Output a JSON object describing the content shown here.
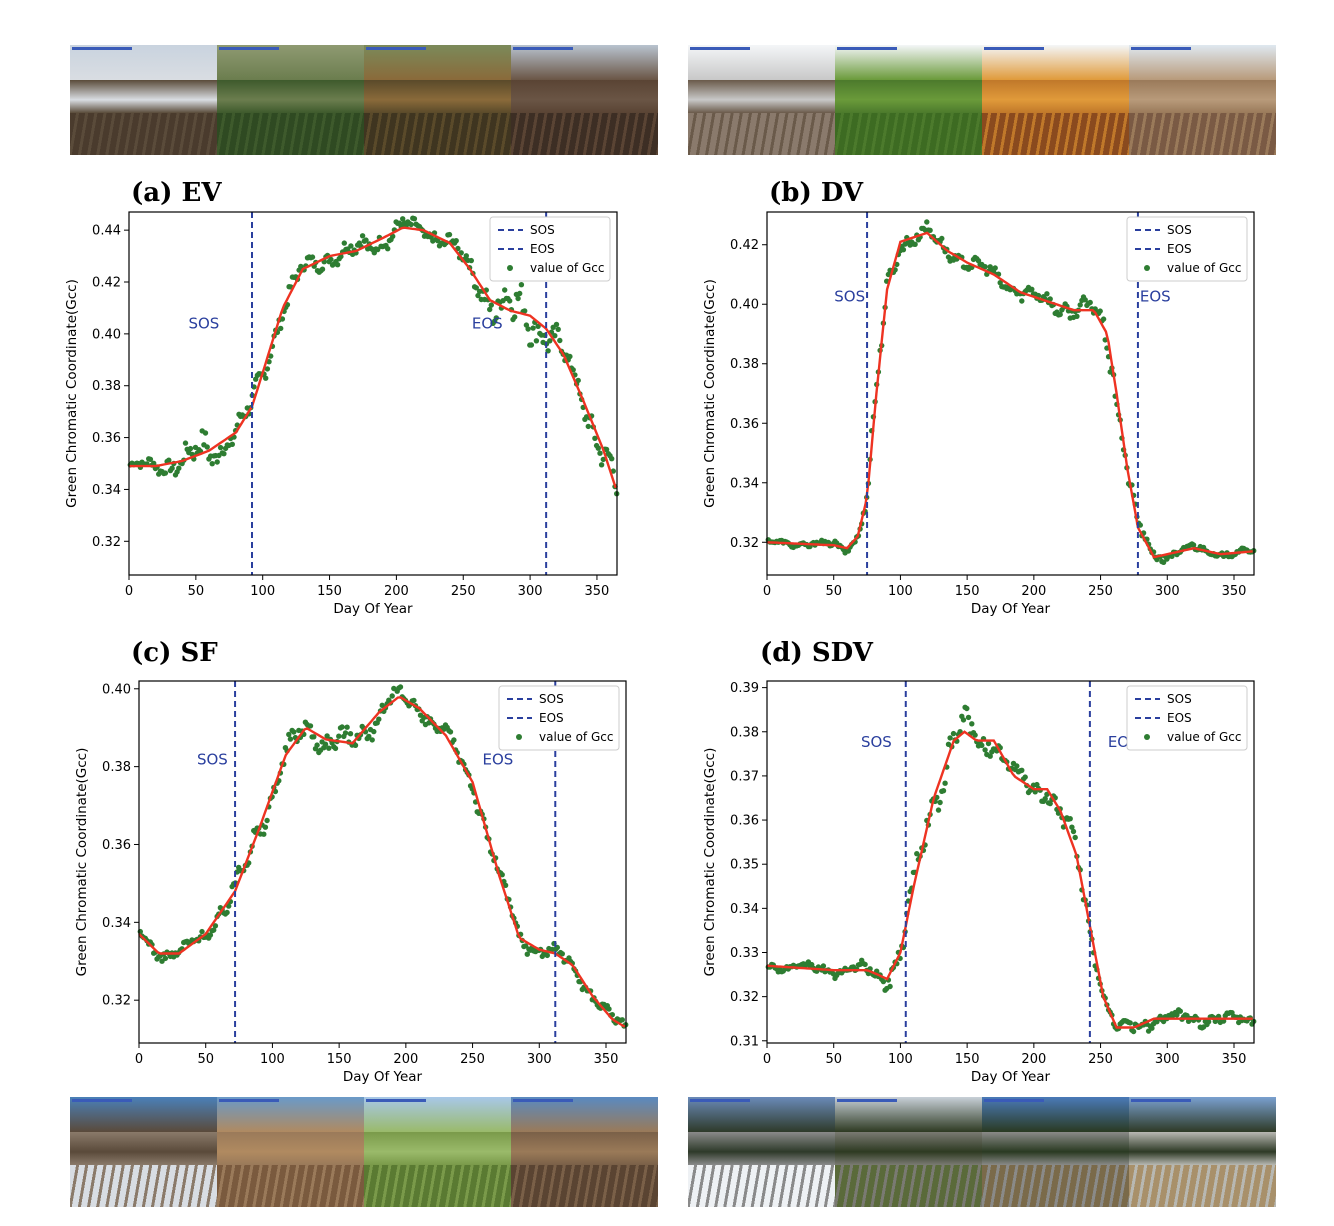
{
  "strips": [
    {
      "name": "photo-strip-ev",
      "left": 70,
      "top": 45,
      "photos": [
        {
          "sky": "#c9d3df",
          "mid": "#5a4b3a",
          "ground": "#4a3b2d",
          "accent": "#d9dde2"
        },
        {
          "sky": "#8f9a72",
          "mid": "#3e5a2c",
          "ground": "#2f4a22",
          "accent": "#6b7d4e"
        },
        {
          "sky": "#7b8a5a",
          "mid": "#5a4a2a",
          "ground": "#3f3520",
          "accent": "#8a6a3a"
        },
        {
          "sky": "#b8c3cf",
          "mid": "#5a4434",
          "ground": "#3d2e24",
          "accent": "#6a5545"
        }
      ]
    },
    {
      "name": "photo-strip-dv",
      "left": 688,
      "top": 45,
      "photos": [
        {
          "sky": "#f4f6f8",
          "mid": "#6a5a4a",
          "ground": "#8a7a6c",
          "accent": "#c8c8c8"
        },
        {
          "sky": "#f4f6f8",
          "mid": "#4c7a2c",
          "ground": "#3d6b22",
          "accent": "#6a9a3a"
        },
        {
          "sky": "#f4f6f8",
          "mid": "#c0782a",
          "ground": "#8a4a1e",
          "accent": "#e09a3a"
        },
        {
          "sky": "#dfe8f0",
          "mid": "#9a7a5a",
          "ground": "#7a5a44",
          "accent": "#b89a7a"
        }
      ]
    },
    {
      "name": "photo-strip-sf",
      "left": 70,
      "top": 1097,
      "photos": [
        {
          "sky": "#4a80b8",
          "mid": "#8a7a6a",
          "ground": "#d8dde3",
          "accent": "#5a4a3a"
        },
        {
          "sky": "#6a9ac8",
          "mid": "#9a7a5a",
          "ground": "#7a5a3e",
          "accent": "#b08a60"
        },
        {
          "sky": "#a8c8e8",
          "mid": "#7a9a4a",
          "ground": "#5a7a32",
          "accent": "#9aba6a"
        },
        {
          "sky": "#5a8ac0",
          "mid": "#7a6048",
          "ground": "#5a4432",
          "accent": "#9a7a58"
        }
      ]
    },
    {
      "name": "photo-strip-sdv",
      "left": 688,
      "top": 1097,
      "photos": [
        {
          "sky": "#6a8ab8",
          "mid": "#8a8a8a",
          "ground": "#eef1f4",
          "accent": "#2e3a2a"
        },
        {
          "sky": "#c8d0d8",
          "mid": "#7a7a72",
          "ground": "#5a6a3a",
          "accent": "#2e3a22"
        },
        {
          "sky": "#4a7ab8",
          "mid": "#8a8a88",
          "ground": "#7a6a4a",
          "accent": "#2a3a22"
        },
        {
          "sky": "#7aa0d0",
          "mid": "#b8b8b2",
          "ground": "#a8906a",
          "accent": "#2e3a26"
        }
      ]
    }
  ],
  "legend_labels": {
    "sos": "SOS",
    "eos": "EOS",
    "points": "value of Gcc"
  },
  "colors": {
    "line": "#ee3322",
    "dots": "#2e7d32",
    "vline": "#2a3f9e",
    "axis": "#000000"
  },
  "chart_data": [
    {
      "panel": "(a) EV",
      "type": "scatter",
      "xlabel": "Day Of Year",
      "ylabel": "Green Chromatic Coordinate(Gcc)",
      "xlim": [
        0,
        365
      ],
      "ylim": [
        0.307,
        0.447
      ],
      "xticks": [
        0,
        50,
        100,
        150,
        200,
        250,
        300,
        350
      ],
      "yticks": [
        0.32,
        0.34,
        0.36,
        0.38,
        0.4,
        0.42,
        0.44
      ],
      "sos": 92,
      "eos": 312,
      "sos_label_pos": [
        56,
        0.402
      ],
      "eos_label_pos": [
        268,
        0.402
      ],
      "curve": [
        [
          0,
          0.349
        ],
        [
          20,
          0.349
        ],
        [
          40,
          0.351
        ],
        [
          60,
          0.355
        ],
        [
          80,
          0.362
        ],
        [
          92,
          0.372
        ],
        [
          100,
          0.385
        ],
        [
          115,
          0.41
        ],
        [
          130,
          0.425
        ],
        [
          150,
          0.43
        ],
        [
          170,
          0.432
        ],
        [
          190,
          0.437
        ],
        [
          205,
          0.441
        ],
        [
          220,
          0.44
        ],
        [
          240,
          0.435
        ],
        [
          255,
          0.425
        ],
        [
          270,
          0.413
        ],
        [
          285,
          0.409
        ],
        [
          300,
          0.407
        ],
        [
          312,
          0.402
        ],
        [
          325,
          0.392
        ],
        [
          340,
          0.374
        ],
        [
          355,
          0.355
        ],
        [
          365,
          0.339
        ]
      ],
      "noise": [
        [
          0,
          0.002
        ],
        [
          30,
          0.005
        ],
        [
          50,
          0.008
        ],
        [
          60,
          0.01
        ],
        [
          80,
          0.006
        ],
        [
          100,
          0.006
        ],
        [
          150,
          0.004
        ],
        [
          170,
          0.006
        ],
        [
          220,
          0.004
        ],
        [
          260,
          0.006
        ],
        [
          280,
          0.012
        ],
        [
          300,
          0.012
        ],
        [
          330,
          0.006
        ],
        [
          365,
          0.01
        ]
      ]
    },
    {
      "panel": "(b) DV",
      "type": "scatter",
      "xlabel": "Day Of Year",
      "ylabel": "Green Chromatic Coordinate(Gcc)",
      "xlim": [
        0,
        365
      ],
      "ylim": [
        0.309,
        0.431
      ],
      "xticks": [
        0,
        50,
        100,
        150,
        200,
        250,
        300,
        350
      ],
      "yticks": [
        0.32,
        0.34,
        0.36,
        0.38,
        0.4,
        0.42
      ],
      "sos": 75,
      "eos": 278,
      "sos_label_pos": [
        62,
        0.401
      ],
      "eos_label_pos": [
        291,
        0.401
      ],
      "curve": [
        [
          0,
          0.32
        ],
        [
          50,
          0.319
        ],
        [
          60,
          0.318
        ],
        [
          68,
          0.322
        ],
        [
          75,
          0.335
        ],
        [
          82,
          0.37
        ],
        [
          90,
          0.405
        ],
        [
          100,
          0.421
        ],
        [
          120,
          0.424
        ],
        [
          135,
          0.418
        ],
        [
          150,
          0.414
        ],
        [
          170,
          0.41
        ],
        [
          190,
          0.404
        ],
        [
          210,
          0.401
        ],
        [
          230,
          0.398
        ],
        [
          245,
          0.398
        ],
        [
          255,
          0.39
        ],
        [
          262,
          0.37
        ],
        [
          270,
          0.345
        ],
        [
          278,
          0.325
        ],
        [
          290,
          0.315
        ],
        [
          300,
          0.316
        ],
        [
          320,
          0.318
        ],
        [
          340,
          0.316
        ],
        [
          365,
          0.317
        ]
      ],
      "noise": [
        [
          0,
          0.001
        ],
        [
          70,
          0.002
        ],
        [
          80,
          0.006
        ],
        [
          95,
          0.004
        ],
        [
          150,
          0.003
        ],
        [
          240,
          0.004
        ],
        [
          260,
          0.007
        ],
        [
          280,
          0.003
        ],
        [
          365,
          0.001
        ]
      ]
    },
    {
      "panel": "(c) SF",
      "type": "scatter",
      "xlabel": "Day Of Year",
      "ylabel": "Green Chromatic Coordinate(Gcc)",
      "xlim": [
        0,
        365
      ],
      "ylim": [
        0.309,
        0.402
      ],
      "xticks": [
        0,
        50,
        100,
        150,
        200,
        250,
        300,
        350
      ],
      "yticks": [
        0.32,
        0.34,
        0.36,
        0.38,
        0.4
      ],
      "sos": 72,
      "eos": 312,
      "sos_label_pos": [
        55,
        0.3805
      ],
      "eos_label_pos": [
        269,
        0.3805
      ],
      "curve": [
        [
          0,
          0.337
        ],
        [
          15,
          0.332
        ],
        [
          30,
          0.332
        ],
        [
          50,
          0.337
        ],
        [
          72,
          0.348
        ],
        [
          90,
          0.364
        ],
        [
          110,
          0.383
        ],
        [
          125,
          0.39
        ],
        [
          140,
          0.387
        ],
        [
          160,
          0.386
        ],
        [
          180,
          0.394
        ],
        [
          195,
          0.398
        ],
        [
          210,
          0.395
        ],
        [
          230,
          0.388
        ],
        [
          250,
          0.376
        ],
        [
          270,
          0.352
        ],
        [
          285,
          0.336
        ],
        [
          300,
          0.333
        ],
        [
          312,
          0.332
        ],
        [
          325,
          0.329
        ],
        [
          340,
          0.321
        ],
        [
          355,
          0.315
        ],
        [
          365,
          0.313
        ]
      ],
      "noise": [
        [
          0,
          0.002
        ],
        [
          50,
          0.002
        ],
        [
          80,
          0.006
        ],
        [
          100,
          0.004
        ],
        [
          150,
          0.004
        ],
        [
          170,
          0.005
        ],
        [
          200,
          0.003
        ],
        [
          270,
          0.003
        ],
        [
          320,
          0.002
        ],
        [
          365,
          0.002
        ]
      ]
    },
    {
      "panel": "(d) SDV",
      "type": "scatter",
      "xlabel": "Day Of Year",
      "ylabel": "Green Chromatic Coordinate(Gcc)",
      "xlim": [
        0,
        365
      ],
      "ylim": [
        0.3095,
        0.3915
      ],
      "xticks": [
        0,
        50,
        100,
        150,
        200,
        250,
        300,
        350
      ],
      "yticks": [
        0.31,
        0.32,
        0.33,
        0.34,
        0.35,
        0.36,
        0.37,
        0.38,
        0.39
      ],
      "sos": 104,
      "eos": 242,
      "sos_label_pos": [
        82,
        0.3765
      ],
      "eos_label_pos": [
        267,
        0.3765
      ],
      "curve": [
        [
          0,
          0.327
        ],
        [
          50,
          0.326
        ],
        [
          75,
          0.326
        ],
        [
          83,
          0.325
        ],
        [
          90,
          0.324
        ],
        [
          100,
          0.33
        ],
        [
          110,
          0.345
        ],
        [
          125,
          0.365
        ],
        [
          140,
          0.378
        ],
        [
          148,
          0.38
        ],
        [
          157,
          0.378
        ],
        [
          170,
          0.378
        ],
        [
          185,
          0.37
        ],
        [
          200,
          0.367
        ],
        [
          210,
          0.367
        ],
        [
          220,
          0.362
        ],
        [
          232,
          0.352
        ],
        [
          242,
          0.336
        ],
        [
          252,
          0.32
        ],
        [
          262,
          0.313
        ],
        [
          275,
          0.313
        ],
        [
          290,
          0.315
        ],
        [
          320,
          0.315
        ],
        [
          340,
          0.315
        ],
        [
          365,
          0.315
        ]
      ],
      "noise": [
        [
          0,
          0.001
        ],
        [
          80,
          0.002
        ],
        [
          115,
          0.005
        ],
        [
          135,
          0.006
        ],
        [
          160,
          0.005
        ],
        [
          200,
          0.003
        ],
        [
          230,
          0.004
        ],
        [
          255,
          0.002
        ],
        [
          365,
          0.002
        ]
      ]
    }
  ]
}
